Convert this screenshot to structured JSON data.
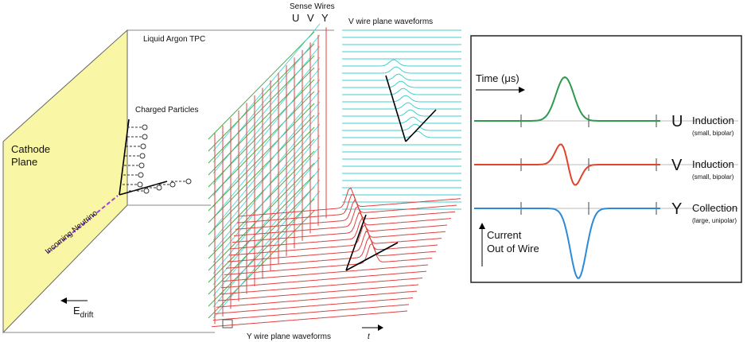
{
  "tpc": {
    "title": "Liquid Argon TPC",
    "cathode": [
      "Cathode",
      "Plane"
    ],
    "charged_particles": "Charged Particles",
    "neutrino": "Incoming Neutrino",
    "field": {
      "symbol": "E",
      "subscript": "drift"
    }
  },
  "wires": {
    "title": "Sense Wires",
    "planes": [
      "U",
      "V",
      "Y"
    ]
  },
  "waveforms": {
    "v_plane": "V wire plane waveforms",
    "y_plane": "Y wire plane waveforms",
    "time_axis": "t"
  },
  "signals": {
    "time_label": "Time (μs)",
    "current_label": [
      "Current",
      "Out of Wire"
    ],
    "rows": [
      {
        "plane": "U",
        "kind": "Induction",
        "note": "(small, bipolar)"
      },
      {
        "plane": "V",
        "kind": "Induction",
        "note": "(small, bipolar)"
      },
      {
        "plane": "Y",
        "kind": "Collection",
        "note": "(large, unipolar)"
      }
    ]
  }
}
